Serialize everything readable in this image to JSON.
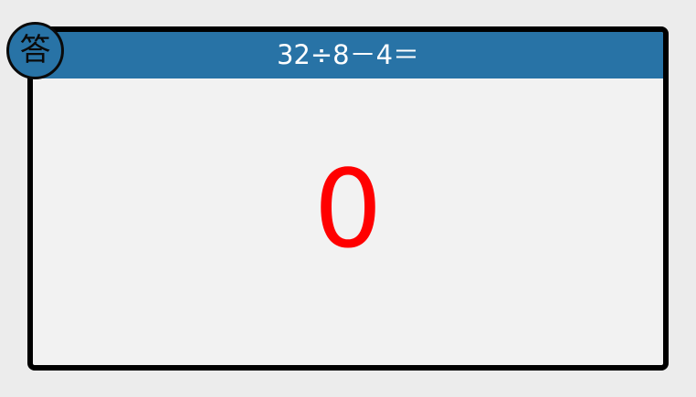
{
  "badge": {
    "label": "答"
  },
  "question": {
    "text": "32÷8－4＝"
  },
  "answer": {
    "text": "0"
  },
  "colors": {
    "header": "#2873a6",
    "answer": "#ff0000",
    "border": "#000000"
  }
}
